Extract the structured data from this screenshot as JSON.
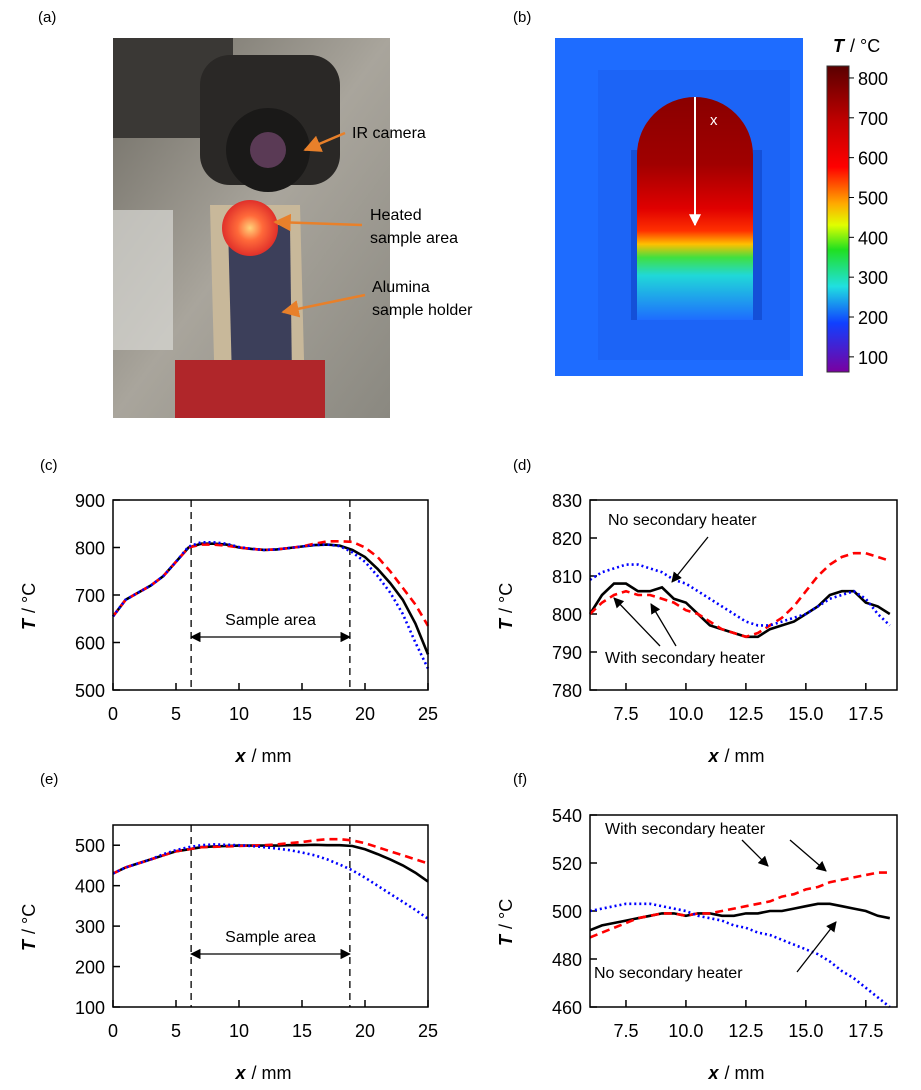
{
  "panels": {
    "a": {
      "label": "(a)",
      "annotations": [
        "IR camera",
        "Heated",
        "sample area",
        "Alumina",
        "sample holder"
      ]
    },
    "b": {
      "label": "(b)",
      "marker": "x",
      "colorbar": {
        "title": [
          "T",
          "/ °C"
        ],
        "lim": [
          62,
          830
        ],
        "ticks": [
          100,
          200,
          300,
          400,
          500,
          600,
          700,
          800
        ]
      }
    }
  },
  "chart_data": [
    {
      "type": "line",
      "label": "(c)",
      "xlabel": [
        "x",
        "/ mm"
      ],
      "ylabel": [
        "T",
        "/ °C"
      ],
      "x": [
        0,
        1,
        2,
        3,
        4,
        5,
        6,
        7,
        8,
        9,
        10,
        11,
        12,
        13,
        14,
        15,
        16,
        17,
        18,
        19,
        20,
        21,
        22,
        23,
        24,
        25
      ],
      "xlim": [
        0,
        25
      ],
      "xticks": [
        0,
        5,
        10,
        15,
        20,
        25
      ],
      "ylim": [
        500,
        900
      ],
      "yticks": [
        500,
        600,
        700,
        800,
        900
      ],
      "vlines": [
        6.2,
        18.8
      ],
      "annotations": [
        "Sample area"
      ],
      "series": [
        {
          "color": "#000000",
          "dash": "solid",
          "values": [
            655,
            690,
            705,
            720,
            740,
            770,
            800,
            808,
            808,
            806,
            800,
            797,
            795,
            796,
            799,
            802,
            805,
            806,
            804,
            795,
            780,
            755,
            725,
            690,
            640,
            575
          ]
        },
        {
          "color": "#ff0000",
          "dash": "dashed",
          "values": [
            655,
            690,
            705,
            720,
            740,
            770,
            800,
            806,
            806,
            804,
            800,
            797,
            795,
            796,
            799,
            802,
            808,
            813,
            813,
            812,
            800,
            780,
            750,
            715,
            680,
            635
          ]
        },
        {
          "color": "#0000ff",
          "dash": "dotted",
          "values": [
            655,
            690,
            705,
            720,
            740,
            770,
            802,
            811,
            811,
            808,
            801,
            797,
            795,
            796,
            799,
            802,
            805,
            806,
            803,
            790,
            770,
            740,
            705,
            660,
            600,
            545
          ]
        }
      ]
    },
    {
      "type": "line",
      "label": "(d)",
      "xlabel": [
        "x",
        "/ mm"
      ],
      "ylabel": [
        "T",
        "/ °C"
      ],
      "x": [
        6,
        6.5,
        7,
        7.5,
        8,
        8.5,
        9,
        9.5,
        10,
        10.5,
        11,
        11.5,
        12,
        12.5,
        13,
        13.5,
        14,
        14.5,
        15,
        15.5,
        16,
        16.5,
        17,
        17.5,
        18,
        18.5
      ],
      "xlim": [
        6,
        18.8
      ],
      "xticks": [
        7.5,
        {
          "value": 10,
          "label": "10.0"
        },
        12.5,
        {
          "value": 15,
          "label": "15.0"
        },
        17.5
      ],
      "ylim": [
        780,
        830
      ],
      "yticks": [
        780,
        790,
        800,
        810,
        820,
        830
      ],
      "annotations": [
        "No secondary heater",
        "With secondary heater"
      ],
      "series": [
        {
          "color": "#000000",
          "dash": "solid",
          "values": [
            800,
            805,
            808,
            808,
            806,
            806,
            807,
            804,
            803,
            800,
            797,
            796,
            795,
            794,
            794,
            796,
            797,
            798,
            800,
            802,
            805,
            806,
            806,
            803,
            802,
            800
          ]
        },
        {
          "color": "#ff0000",
          "dash": "dashed",
          "values": [
            800,
            803,
            805,
            806,
            805,
            805,
            804,
            803,
            801,
            800,
            798,
            796,
            795,
            794,
            795,
            797,
            799,
            802,
            806,
            810,
            813,
            815,
            816,
            816,
            815,
            814
          ]
        },
        {
          "color": "#0000ff",
          "dash": "dotted",
          "values": [
            809,
            811,
            812,
            813,
            813,
            812,
            811,
            809,
            808,
            806,
            804,
            802,
            800,
            798,
            797,
            797,
            798,
            799,
            800,
            802,
            804,
            805,
            806,
            804,
            800,
            797
          ]
        }
      ]
    },
    {
      "type": "line",
      "label": "(e)",
      "xlabel": [
        "x",
        "/ mm"
      ],
      "ylabel": [
        "T",
        "/ °C"
      ],
      "x": [
        0,
        1,
        2,
        3,
        4,
        5,
        6,
        7,
        8,
        9,
        10,
        11,
        12,
        13,
        14,
        15,
        16,
        17,
        18,
        19,
        20,
        21,
        22,
        23,
        24,
        25
      ],
      "xlim": [
        0,
        25
      ],
      "xticks": [
        0,
        5,
        10,
        15,
        20,
        25
      ],
      "ylim": [
        100,
        550
      ],
      "yticks": [
        100,
        200,
        300,
        400,
        500
      ],
      "vlines": [
        6.2,
        18.8
      ],
      "annotations": [
        "Sample area"
      ],
      "series": [
        {
          "color": "#000000",
          "dash": "solid",
          "values": [
            430,
            445,
            455,
            465,
            475,
            485,
            490,
            495,
            497,
            498,
            499,
            499,
            499,
            499,
            500,
            500,
            501,
            500,
            500,
            498,
            490,
            478,
            465,
            450,
            432,
            410
          ]
        },
        {
          "color": "#ff0000",
          "dash": "dashed",
          "values": [
            430,
            445,
            455,
            465,
            475,
            485,
            490,
            495,
            496,
            497,
            498,
            499,
            500,
            502,
            505,
            508,
            512,
            515,
            515,
            512,
            505,
            495,
            485,
            475,
            465,
            455
          ]
        },
        {
          "color": "#0000ff",
          "dash": "dotted",
          "values": [
            430,
            445,
            455,
            465,
            478,
            488,
            495,
            500,
            502,
            501,
            500,
            498,
            495,
            492,
            488,
            482,
            475,
            465,
            452,
            438,
            420,
            400,
            380,
            360,
            340,
            318
          ]
        }
      ]
    },
    {
      "type": "line",
      "label": "(f)",
      "xlabel": [
        "x",
        "/ mm"
      ],
      "ylabel": [
        "T",
        "/ °C"
      ],
      "x": [
        6,
        6.5,
        7,
        7.5,
        8,
        8.5,
        9,
        9.5,
        10,
        10.5,
        11,
        11.5,
        12,
        12.5,
        13,
        13.5,
        14,
        14.5,
        15,
        15.5,
        16,
        16.5,
        17,
        17.5,
        18,
        18.5
      ],
      "xlim": [
        6,
        18.8
      ],
      "xticks": [
        7.5,
        {
          "value": 10,
          "label": "10.0"
        },
        12.5,
        {
          "value": 15,
          "label": "15.0"
        },
        17.5
      ],
      "ylim": [
        460,
        540
      ],
      "yticks": [
        460,
        480,
        500,
        520,
        540
      ],
      "annotations": [
        "With secondary heater",
        "No secondary heater"
      ],
      "series": [
        {
          "color": "#000000",
          "dash": "solid",
          "values": [
            492,
            494,
            495,
            496,
            497,
            498,
            499,
            499,
            498,
            499,
            499,
            498,
            498,
            499,
            499,
            500,
            500,
            501,
            502,
            503,
            503,
            502,
            501,
            500,
            498,
            497
          ]
        },
        {
          "color": "#ff0000",
          "dash": "dashed",
          "values": [
            489,
            491,
            493,
            495,
            497,
            498,
            499,
            499,
            498,
            499,
            499,
            500,
            501,
            502,
            503,
            504,
            506,
            507,
            509,
            510,
            512,
            513,
            514,
            515,
            516,
            516
          ]
        },
        {
          "color": "#0000ff",
          "dash": "dotted",
          "values": [
            500,
            501,
            502,
            503,
            503,
            503,
            502,
            501,
            500,
            498,
            497,
            496,
            494,
            493,
            491,
            490,
            488,
            486,
            484,
            482,
            479,
            475,
            472,
            468,
            464,
            460
          ]
        }
      ]
    }
  ]
}
